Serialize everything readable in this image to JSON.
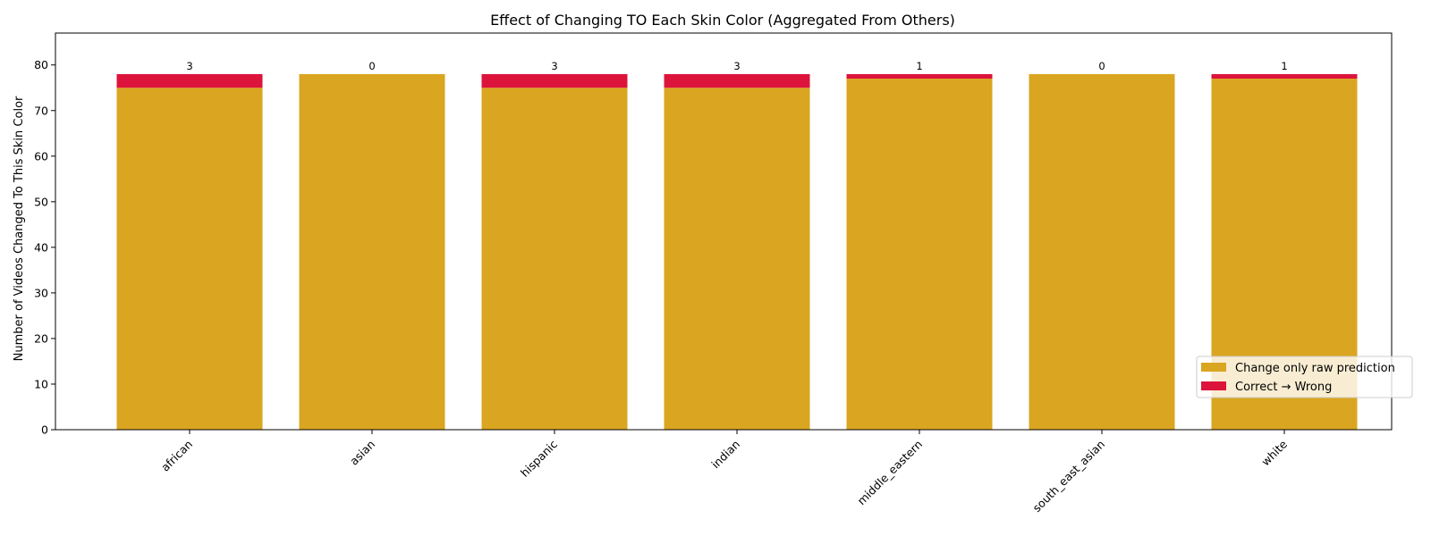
{
  "chart_data": {
    "type": "bar",
    "stacked": true,
    "title": "Effect of Changing TO Each Skin Color (Aggregated From Others)",
    "xlabel": "",
    "ylabel": "Number of Videos Changed To This Skin Color",
    "categories": [
      "african",
      "asian",
      "hispanic",
      "indian",
      "middle_eastern",
      "south_east_asian",
      "white"
    ],
    "series": [
      {
        "name": "Change only raw prediction",
        "color": "#DAA520",
        "values": [
          75,
          78,
          75,
          75,
          77,
          78,
          77
        ]
      },
      {
        "name": "Correct → Wrong",
        "color": "#DC143C",
        "values": [
          3,
          0,
          3,
          3,
          1,
          0,
          1
        ]
      }
    ],
    "data_labels": [
      3,
      0,
      3,
      3,
      1,
      0,
      1
    ],
    "ylim": [
      0,
      87
    ],
    "yticks": [
      0,
      10,
      20,
      30,
      40,
      50,
      60,
      70,
      80
    ],
    "grid": false,
    "legend_position": "lower-right"
  }
}
